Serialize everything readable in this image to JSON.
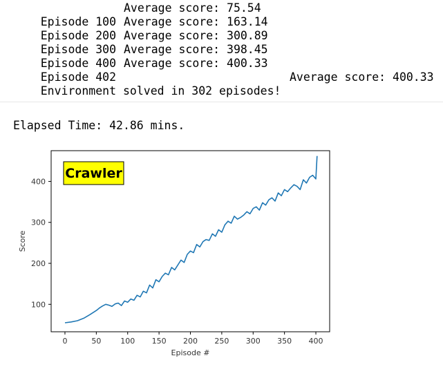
{
  "log": {
    "episodes": [
      {
        "episode_label": "Episode 100",
        "score_label": "Average score: 75.54"
      },
      {
        "episode_label": "Episode 200",
        "score_label": "Average score: 163.14"
      },
      {
        "episode_label": "Episode 300",
        "score_label": "Average score: 300.89"
      },
      {
        "episode_label": "Episode 400",
        "score_label": "Average score: 398.45"
      },
      {
        "episode_label": "Episode 402",
        "score_label": "Average score: 400.33"
      }
    ],
    "solved_text": "Environment solved in 302 episodes!",
    "solved_score": "Average score: 400.33"
  },
  "elapsed": "Elapsed Time: 42.86 mins.",
  "chart_data": {
    "type": "line",
    "title": "",
    "annotation": "Crawler",
    "annotation_bg": "#ffff00",
    "line_color": "#1f77b4",
    "xlabel": "Episode #",
    "ylabel": "Score",
    "xlim": [
      -22,
      422
    ],
    "ylim": [
      33,
      475
    ],
    "xticks": [
      0,
      50,
      100,
      150,
      200,
      250,
      300,
      350,
      400
    ],
    "yticks": [
      100,
      200,
      300,
      400
    ],
    "grid": false,
    "x": [
      0,
      10,
      20,
      30,
      40,
      50,
      55,
      60,
      65,
      70,
      75,
      80,
      85,
      90,
      95,
      100,
      105,
      110,
      115,
      120,
      125,
      130,
      135,
      140,
      145,
      150,
      155,
      160,
      165,
      170,
      175,
      180,
      185,
      190,
      195,
      200,
      205,
      210,
      215,
      220,
      225,
      230,
      235,
      240,
      245,
      250,
      255,
      260,
      265,
      270,
      275,
      280,
      285,
      290,
      295,
      300,
      305,
      310,
      315,
      320,
      325,
      330,
      335,
      340,
      345,
      350,
      355,
      360,
      365,
      370,
      375,
      380,
      385,
      390,
      395,
      400,
      402
    ],
    "y": [
      55,
      57,
      60,
      66,
      75,
      85,
      91,
      96,
      100,
      98,
      95,
      101,
      103,
      97,
      108,
      105,
      113,
      110,
      122,
      118,
      132,
      128,
      147,
      140,
      160,
      155,
      168,
      176,
      172,
      190,
      184,
      196,
      208,
      202,
      222,
      230,
      226,
      246,
      240,
      253,
      258,
      256,
      272,
      266,
      282,
      276,
      294,
      303,
      298,
      315,
      308,
      312,
      318,
      326,
      321,
      334,
      338,
      330,
      348,
      342,
      355,
      360,
      352,
      372,
      365,
      380,
      375,
      384,
      392,
      388,
      380,
      404,
      396,
      410,
      415,
      406,
      462
    ]
  }
}
